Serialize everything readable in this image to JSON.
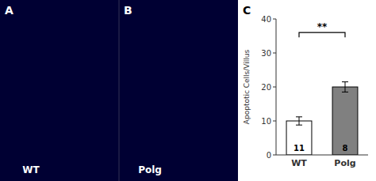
{
  "chart_data": {
    "type": "bar",
    "categories": [
      "WT",
      "Polg"
    ],
    "values": [
      10,
      20
    ],
    "errors": [
      1.2,
      1.5
    ],
    "colors": [
      "#ffffff",
      "#808080"
    ],
    "n_labels": [
      "11",
      "8"
    ],
    "ylabel": "Apoptotic Cells/Villus",
    "ylim": [
      0,
      40
    ],
    "yticks": [
      0,
      10,
      20,
      30,
      40
    ],
    "grid": false,
    "significance": {
      "text": "**",
      "y": 36,
      "from": "WT",
      "to": "Polg"
    },
    "panels": [
      {
        "label": "A",
        "caption": "WT"
      },
      {
        "label": "B",
        "caption": "Polg"
      }
    ],
    "panel_label": "C"
  }
}
